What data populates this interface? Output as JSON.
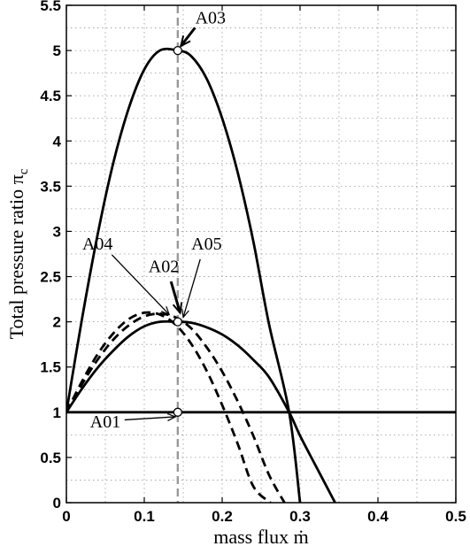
{
  "chart_data": {
    "type": "line",
    "xlabel": "mass flux ṁ",
    "ylabel": "Total pressure ratio π",
    "ylabel_subscript": "c",
    "xlim": [
      0,
      0.5
    ],
    "ylim": [
      0,
      5.5
    ],
    "grid": true,
    "x_ticks": [
      "0",
      "0.1",
      "0.2",
      "0.3",
      "0.4",
      "0.5"
    ],
    "y_ticks": [
      "0",
      "0.5",
      "1",
      "1.5",
      "2",
      "2.5",
      "3",
      "3.5",
      "4",
      "4.5",
      "5",
      "5.5"
    ],
    "x_tick_values": [
      0,
      0.1,
      0.2,
      0.3,
      0.4,
      0.5
    ],
    "y_tick_values": [
      0,
      0.5,
      1,
      1.5,
      2,
      2.5,
      3,
      3.5,
      4,
      4.5,
      5,
      5.5
    ],
    "series": [
      {
        "style": "solid",
        "x": [
          0,
          0.02,
          0.04,
          0.06,
          0.08,
          0.1,
          0.12,
          0.143,
          0.16,
          0.18,
          0.2,
          0.22,
          0.24,
          0.26,
          0.286,
          0.3
        ],
        "y": [
          1.0,
          2.03,
          2.96,
          3.75,
          4.36,
          4.79,
          5.0,
          5.0,
          4.94,
          4.69,
          4.25,
          3.65,
          2.89,
          1.98,
          1.0,
          0.0
        ]
      },
      {
        "style": "solid",
        "x": [
          0,
          0.02,
          0.04,
          0.06,
          0.08,
          0.1,
          0.12,
          0.143,
          0.16,
          0.18,
          0.2,
          0.22,
          0.24,
          0.26,
          0.286,
          0.3,
          0.32,
          0.345
        ],
        "y": [
          1.0,
          1.26,
          1.49,
          1.68,
          1.84,
          1.95,
          2.0,
          2.0,
          1.99,
          1.94,
          1.86,
          1.74,
          1.58,
          1.39,
          1.0,
          0.74,
          0.41,
          0.0
        ]
      },
      {
        "style": "solid",
        "x": [
          0,
          0.5
        ],
        "y": [
          1.0,
          1.0
        ]
      },
      {
        "style": "dashed",
        "x": [
          0,
          0.02,
          0.04,
          0.06,
          0.08,
          0.1,
          0.12,
          0.14,
          0.16,
          0.18,
          0.2,
          0.22,
          0.24,
          0.26,
          0.28
        ],
        "y": [
          1.0,
          1.31,
          1.58,
          1.8,
          1.96,
          2.06,
          2.09,
          2.05,
          1.93,
          1.72,
          1.45,
          1.12,
          0.74,
          0.31,
          0.0
        ]
      },
      {
        "style": "dashed",
        "x": [
          0,
          0.02,
          0.04,
          0.06,
          0.08,
          0.1,
          0.12,
          0.14,
          0.16,
          0.18,
          0.2,
          0.22,
          0.24,
          0.262
        ],
        "y": [
          1.0,
          1.34,
          1.64,
          1.87,
          2.03,
          2.1,
          2.08,
          1.97,
          1.76,
          1.46,
          1.08,
          0.65,
          0.18,
          0.0
        ]
      }
    ],
    "reference_line": {
      "style": "dashed",
      "color": "#999999",
      "x": 0.143
    },
    "markers": [
      {
        "x": 0.143,
        "y": 5.0
      },
      {
        "x": 0.143,
        "y": 2.0
      },
      {
        "x": 0.143,
        "y": 1.0
      }
    ],
    "annotations": [
      {
        "text": "A03",
        "text_x": 0.185,
        "text_y": 5.3,
        "point_x": 0.147,
        "point_y": 5.05,
        "arrow": "bold"
      },
      {
        "text": "A02",
        "text_x": 0.125,
        "text_y": 2.55,
        "point_x": 0.146,
        "point_y": 2.1,
        "arrow": "bold"
      },
      {
        "text": "A04",
        "text_x": 0.04,
        "text_y": 2.8,
        "point_x": 0.132,
        "point_y": 2.08,
        "arrow": "thin"
      },
      {
        "text": "A05",
        "text_x": 0.18,
        "text_y": 2.8,
        "point_x": 0.15,
        "point_y": 2.05,
        "arrow": "thin"
      },
      {
        "text": "A01",
        "text_x": 0.05,
        "text_y": 0.83,
        "point_x": 0.14,
        "point_y": 0.95,
        "arrow": "thin"
      }
    ],
    "colors": {
      "line": "#000000",
      "reference": "#999999",
      "grid": "#9a9a9a"
    }
  }
}
